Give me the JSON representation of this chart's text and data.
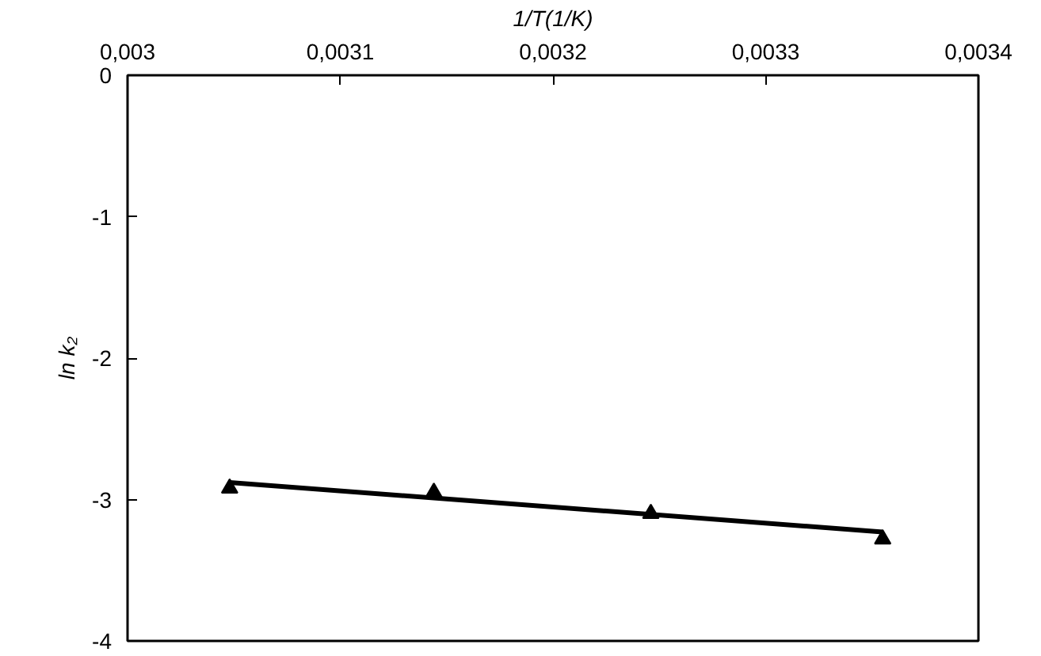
{
  "chart_data": {
    "type": "scatter",
    "xlabel": "1/T(1/K)",
    "ylabel": "ln k₂",
    "xlim": [
      0.003,
      0.0034
    ],
    "ylim": [
      -4,
      0
    ],
    "xticks": [
      {
        "value": 0.003,
        "label": "0,003"
      },
      {
        "value": 0.0031,
        "label": "0,0031"
      },
      {
        "value": 0.0032,
        "label": "0,0032"
      },
      {
        "value": 0.0033,
        "label": "0,0033"
      },
      {
        "value": 0.0034,
        "label": "0,0034"
      }
    ],
    "yticks": [
      0,
      -1,
      -2,
      -3,
      -4
    ],
    "grid": false,
    "series": [
      {
        "marker": "triangle",
        "color": "#000000",
        "x": [
          0.003048,
          0.003144,
          0.003246,
          0.003355
        ],
        "values": [
          -2.92,
          -2.95,
          -3.1,
          -3.28
        ]
      },
      {
        "type": "line",
        "marker": "none",
        "line_style": "solid",
        "color": "#000000",
        "x": [
          0.003048,
          0.003355
        ],
        "values": [
          -2.88,
          -3.23
        ]
      }
    ]
  }
}
